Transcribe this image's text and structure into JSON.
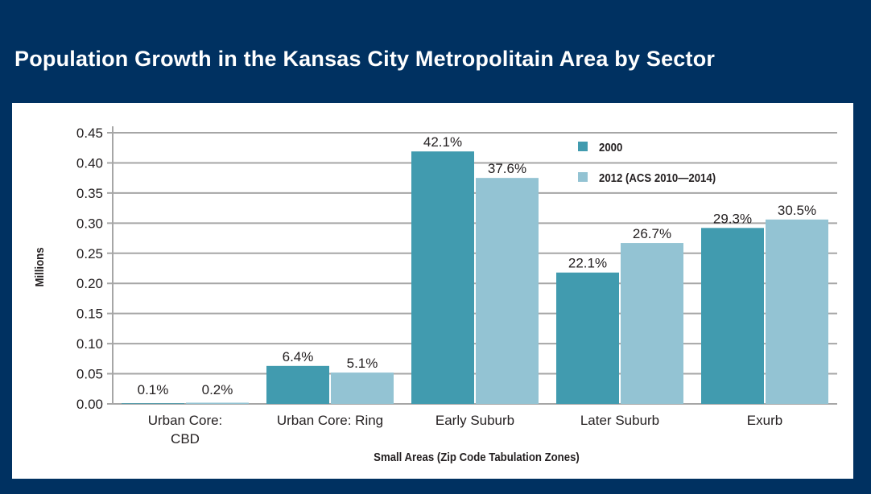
{
  "chart_data": {
    "type": "bar",
    "title": "Population Growth in the Kansas City Metropolitain Area by Sector",
    "xlabel": "Small Areas (Zip Code Tabulation Zones)",
    "ylabel": "Millions",
    "ylim": [
      0,
      0.45
    ],
    "yticks": [
      "0.00",
      "0.05",
      "0.10",
      "0.15",
      "0.20",
      "0.25",
      "0.30",
      "0.35",
      "0.40",
      "0.45"
    ],
    "grid": true,
    "legend_position": "top-right",
    "categories": [
      [
        "Urban Core:",
        "CBD"
      ],
      [
        "Urban Core: Ring"
      ],
      [
        "Early Suburb"
      ],
      [
        "Later Suburb"
      ],
      [
        "Exurb"
      ]
    ],
    "series": [
      {
        "name": "2000",
        "color": "#419BAF",
        "values": [
          0.001,
          0.063,
          0.419,
          0.218,
          0.292
        ],
        "labels": [
          "0.1%",
          "6.4%",
          "42.1%",
          "22.1%",
          "29.3%"
        ]
      },
      {
        "name": "2012 (ACS 2010—2014)",
        "color": "#93C3D3",
        "values": [
          0.002,
          0.052,
          0.375,
          0.267,
          0.306
        ],
        "labels": [
          "0.2%",
          "5.1%",
          "37.6%",
          "26.7%",
          "30.5%"
        ]
      }
    ]
  },
  "colors": {
    "background": "#003161",
    "panel": "#ffffff",
    "grid": "#a6a6a6"
  }
}
